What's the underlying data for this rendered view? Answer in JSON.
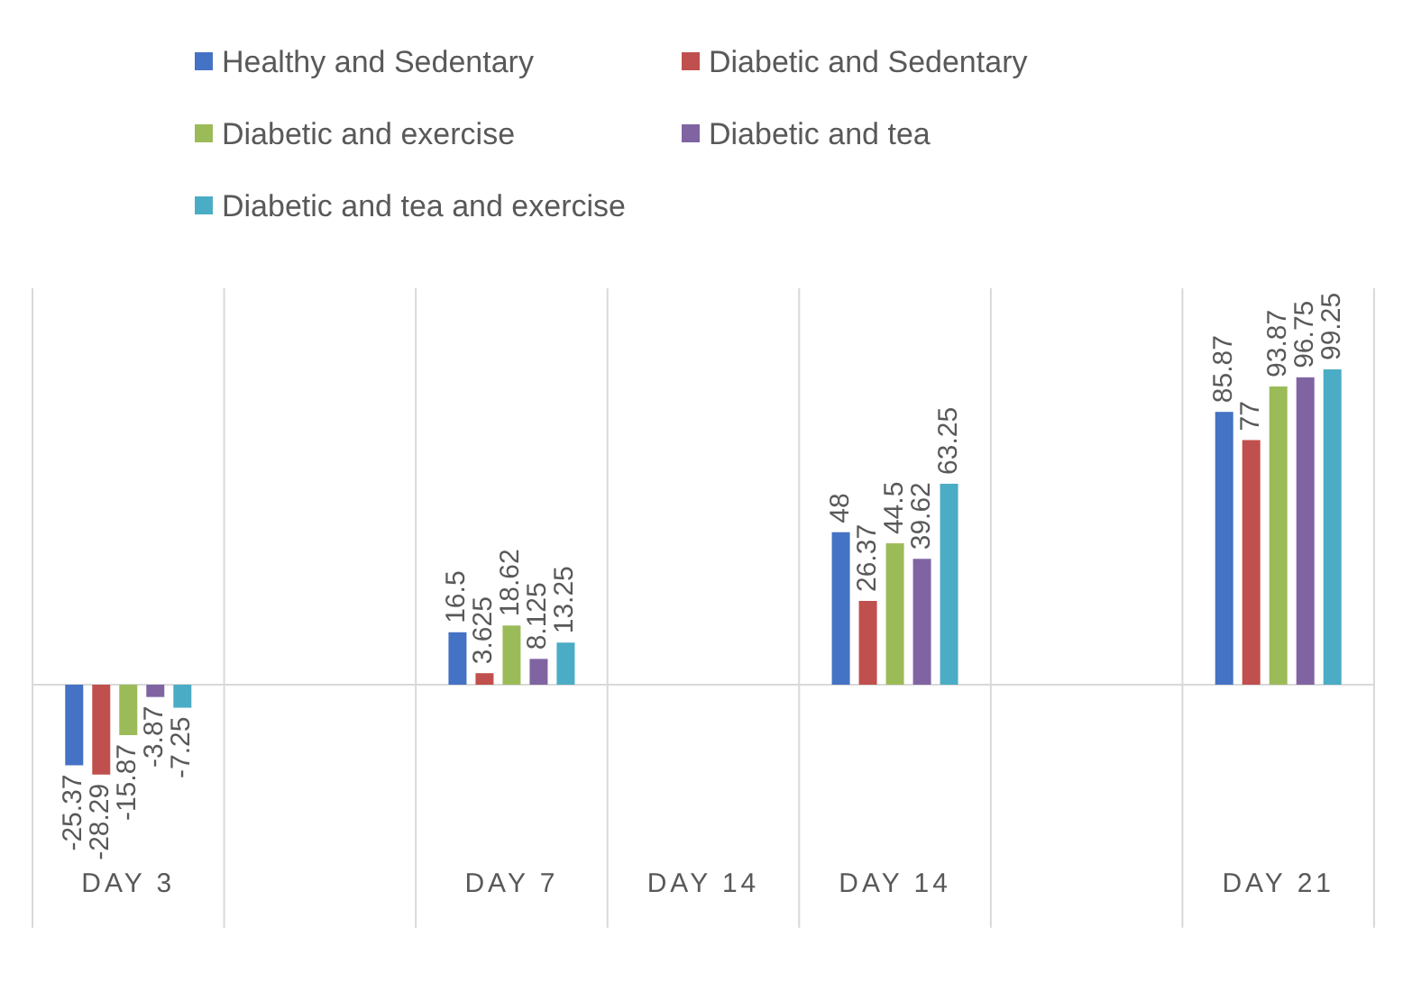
{
  "chart_data": {
    "type": "bar",
    "categories": [
      "DAY 3",
      null,
      "DAY 7",
      "DAY 14",
      "DAY 14",
      null,
      "DAY 21"
    ],
    "series": [
      {
        "name": "Healthy and Sedentary",
        "color": "#4472c4",
        "values": [
          -25.37,
          null,
          16.5,
          null,
          48,
          null,
          85.87
        ]
      },
      {
        "name": "Diabetic and Sedentary",
        "color": "#c0504d",
        "values": [
          -28.29,
          null,
          3.625,
          null,
          26.37,
          null,
          77
        ]
      },
      {
        "name": "Diabetic and exercise",
        "color": "#9bbb59",
        "values": [
          -15.87,
          null,
          18.62,
          null,
          44.5,
          null,
          93.87
        ]
      },
      {
        "name": "Diabetic and tea",
        "color": "#8064a2",
        "values": [
          -3.87,
          null,
          8.125,
          null,
          39.62,
          null,
          96.75
        ]
      },
      {
        "name": "Diabetic and tea and exercise",
        "color": "#4bacc6",
        "values": [
          -7.25,
          null,
          13.25,
          null,
          63.25,
          null,
          99.25
        ]
      }
    ],
    "data_labels": true,
    "grid": "x",
    "legend": "top"
  }
}
